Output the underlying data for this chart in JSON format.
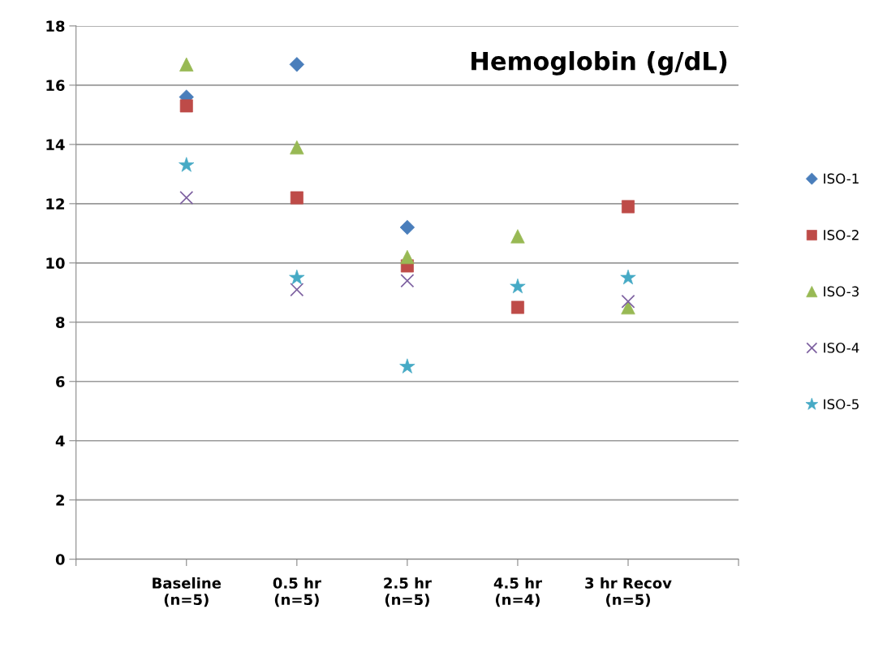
{
  "chart_data": {
    "type": "scatter",
    "title": "Hemoglobin (g/dL)",
    "categories": [
      "Baseline\n(n=5)",
      "0.5 hr\n(n=5)",
      "2.5 hr\n(n=5)",
      "4.5 hr\n(n=4)",
      "3 hr Recov\n(n=5)"
    ],
    "series": [
      {
        "name": "ISO-1",
        "color": "#4a7ebb",
        "marker": "diamond",
        "values": [
          15.6,
          16.7,
          11.2,
          null,
          null
        ]
      },
      {
        "name": "ISO-2",
        "color": "#be4b48",
        "marker": "square",
        "values": [
          15.3,
          12.2,
          9.9,
          8.5,
          11.9
        ]
      },
      {
        "name": "ISO-3",
        "color": "#98b954",
        "marker": "triangle",
        "values": [
          16.7,
          13.9,
          10.2,
          10.9,
          8.5
        ]
      },
      {
        "name": "ISO-4",
        "color": "#7d60a0",
        "marker": "cross",
        "values": [
          12.2,
          9.1,
          9.4,
          null,
          8.7
        ]
      },
      {
        "name": "ISO-5",
        "color": "#46aac5",
        "marker": "star",
        "values": [
          13.3,
          9.5,
          6.5,
          9.2,
          9.5
        ]
      }
    ],
    "ylim": [
      0,
      18
    ],
    "yticks": [
      0,
      2,
      4,
      6,
      8,
      10,
      12,
      14,
      16,
      18
    ],
    "grid": "y",
    "legend": "right"
  }
}
